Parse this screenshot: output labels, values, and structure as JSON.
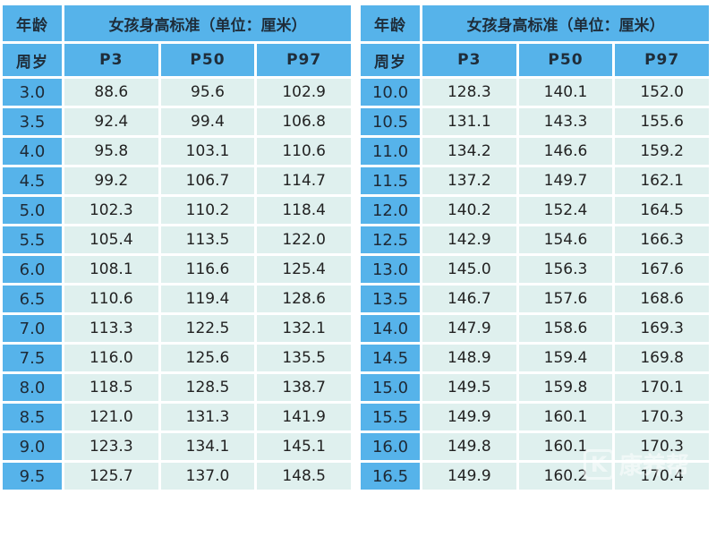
{
  "header": {
    "age_label": "年龄",
    "age_unit_label": "周岁",
    "title": "女孩身高标准（单位：厘米）",
    "columns": [
      "P3",
      "P50",
      "P97"
    ]
  },
  "left_table": {
    "rows": [
      {
        "age": "3.0",
        "p3": "88.6",
        "p50": "95.6",
        "p97": "102.9"
      },
      {
        "age": "3.5",
        "p3": "92.4",
        "p50": "99.4",
        "p97": "106.8"
      },
      {
        "age": "4.0",
        "p3": "95.8",
        "p50": "103.1",
        "p97": "110.6"
      },
      {
        "age": "4.5",
        "p3": "99.2",
        "p50": "106.7",
        "p97": "114.7"
      },
      {
        "age": "5.0",
        "p3": "102.3",
        "p50": "110.2",
        "p97": "118.4"
      },
      {
        "age": "5.5",
        "p3": "105.4",
        "p50": "113.5",
        "p97": "122.0"
      },
      {
        "age": "6.0",
        "p3": "108.1",
        "p50": "116.6",
        "p97": "125.4"
      },
      {
        "age": "6.5",
        "p3": "110.6",
        "p50": "119.4",
        "p97": "128.6"
      },
      {
        "age": "7.0",
        "p3": "113.3",
        "p50": "122.5",
        "p97": "132.1"
      },
      {
        "age": "7.5",
        "p3": "116.0",
        "p50": "125.6",
        "p97": "135.5"
      },
      {
        "age": "8.0",
        "p3": "118.5",
        "p50": "128.5",
        "p97": "138.7"
      },
      {
        "age": "8.5",
        "p3": "121.0",
        "p50": "131.3",
        "p97": "141.9"
      },
      {
        "age": "9.0",
        "p3": "123.3",
        "p50": "134.1",
        "p97": "145.1"
      },
      {
        "age": "9.5",
        "p3": "125.7",
        "p50": "137.0",
        "p97": "148.5"
      }
    ]
  },
  "right_table": {
    "rows": [
      {
        "age": "10.0",
        "p3": "128.3",
        "p50": "140.1",
        "p97": "152.0"
      },
      {
        "age": "10.5",
        "p3": "131.1",
        "p50": "143.3",
        "p97": "155.6"
      },
      {
        "age": "11.0",
        "p3": "134.2",
        "p50": "146.6",
        "p97": "159.2"
      },
      {
        "age": "11.5",
        "p3": "137.2",
        "p50": "149.7",
        "p97": "162.1"
      },
      {
        "age": "12.0",
        "p3": "140.2",
        "p50": "152.4",
        "p97": "164.5"
      },
      {
        "age": "12.5",
        "p3": "142.9",
        "p50": "154.6",
        "p97": "166.3"
      },
      {
        "age": "13.0",
        "p3": "145.0",
        "p50": "156.3",
        "p97": "167.6"
      },
      {
        "age": "13.5",
        "p3": "146.7",
        "p50": "157.6",
        "p97": "168.6"
      },
      {
        "age": "14.0",
        "p3": "147.9",
        "p50": "158.6",
        "p97": "169.3"
      },
      {
        "age": "14.5",
        "p3": "148.9",
        "p50": "159.4",
        "p97": "169.8"
      },
      {
        "age": "15.0",
        "p3": "149.5",
        "p50": "159.8",
        "p97": "170.1"
      },
      {
        "age": "15.5",
        "p3": "149.9",
        "p50": "160.1",
        "p97": "170.3"
      },
      {
        "age": "16.0",
        "p3": "149.8",
        "p50": "160.1",
        "p97": "170.3"
      },
      {
        "age": "16.5",
        "p3": "149.9",
        "p50": "160.2",
        "p97": "170.4"
      }
    ]
  },
  "watermark": {
    "logo_letter": "K",
    "text": "康养帮"
  },
  "colors": {
    "header_blue": "#56b3ea",
    "cell_mint": "#dff0ee"
  }
}
